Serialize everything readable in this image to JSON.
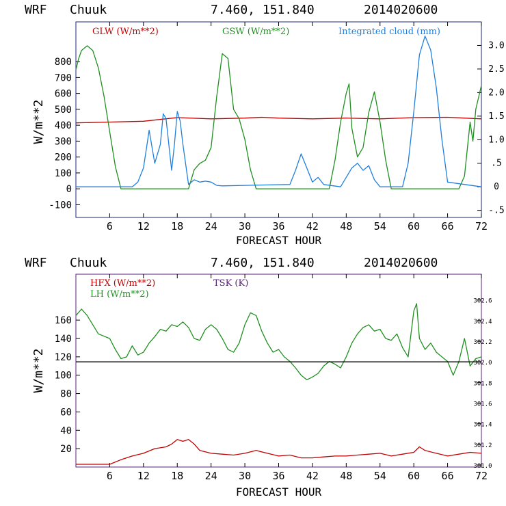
{
  "chart_data": [
    {
      "type": "line",
      "header": {
        "model": "WRF",
        "station": "Chuuk",
        "coords": "7.460, 151.840",
        "date": "2014020600"
      },
      "xlabel": "FORECAST HOUR",
      "ylabel": "W/m**2",
      "xlim": [
        0,
        72
      ],
      "x_ticks": [
        "6",
        "12",
        "18",
        "24",
        "30",
        "36",
        "42",
        "48",
        "54",
        "60",
        "66",
        "72"
      ],
      "ylim_left": [
        -180,
        1050
      ],
      "y_ticks_left": [
        "800",
        "700",
        "600",
        "500",
        "400",
        "300",
        "200",
        "100",
        "0",
        "-100"
      ],
      "ylim_right": [
        -0.65,
        3.5
      ],
      "y_ticks_right": [
        "3.0",
        "2.5",
        "2.0",
        "1.5",
        "1.0",
        ".5",
        "0",
        "-.5"
      ],
      "legend": [
        "GLW (W/m**2)",
        "GSW (W/m**2)",
        "Integrated cloud (mm)"
      ],
      "colors": {
        "GLW": "#c00000",
        "GSW": "#1f8f1f",
        "cloud": "#1e7fe0",
        "axis": "#000000"
      },
      "series": [
        {
          "name": "GLW (W/m**2)",
          "axis": "left",
          "x": [
            0,
            6,
            12,
            18,
            24,
            30,
            33,
            36,
            42,
            48,
            54,
            60,
            66,
            69,
            72
          ],
          "values": [
            415,
            420,
            425,
            448,
            440,
            445,
            450,
            445,
            440,
            445,
            440,
            448,
            450,
            445,
            440
          ]
        },
        {
          "name": "GSW (W/m**2)",
          "axis": "left",
          "x": [
            0,
            0.5,
            1,
            2,
            3,
            4,
            5,
            6,
            7,
            8,
            20,
            21,
            22,
            23,
            24,
            25,
            26,
            27,
            28,
            29,
            30,
            31,
            32,
            45,
            46,
            47,
            48,
            48.5,
            49,
            50,
            51,
            52,
            53,
            54,
            55,
            56,
            68,
            69,
            70,
            70.5,
            71,
            72
          ],
          "values": [
            750,
            820,
            870,
            900,
            870,
            760,
            580,
            360,
            140,
            0,
            0,
            120,
            160,
            180,
            260,
            580,
            850,
            820,
            500,
            440,
            310,
            120,
            0,
            0,
            180,
            420,
            600,
            660,
            380,
            200,
            260,
            480,
            610,
            420,
            180,
            0,
            0,
            80,
            420,
            300,
            500,
            650
          ]
        },
        {
          "name": "Integrated cloud (mm)",
          "axis": "right",
          "x": [
            0,
            10,
            11,
            12,
            12.5,
            13,
            14,
            15,
            15.5,
            16,
            17,
            17.5,
            18,
            18.5,
            19,
            20,
            21,
            22,
            23,
            24,
            25,
            26,
            30,
            38,
            39,
            40,
            41,
            42,
            43,
            44,
            47,
            48,
            49,
            50,
            51,
            52,
            53,
            54,
            58,
            59,
            60,
            61,
            62,
            63,
            64,
            65,
            66,
            72
          ],
          "values": [
            0,
            0,
            0.1,
            0.4,
            0.8,
            1.2,
            0.5,
            0.9,
            1.55,
            1.45,
            0.35,
            0.9,
            1.6,
            1.4,
            0.9,
            0.05,
            0.15,
            0.1,
            0.12,
            0.1,
            0.03,
            0.02,
            0.03,
            0.05,
            0.35,
            0.7,
            0.4,
            0.1,
            0.2,
            0.05,
            0,
            0.2,
            0.4,
            0.5,
            0.35,
            0.45,
            0.15,
            0,
            0,
            0.5,
            1.6,
            2.8,
            3.2,
            2.9,
            2.1,
            1.0,
            0.1,
            0
          ]
        }
      ]
    },
    {
      "type": "line",
      "header": {
        "model": "WRF",
        "station": "Chuuk",
        "coords": "7.460, 151.840",
        "date": "2014020600"
      },
      "xlabel": "FORECAST HOUR",
      "ylabel": "W/m**2",
      "xlim": [
        0,
        72
      ],
      "x_ticks": [
        "6",
        "12",
        "18",
        "24",
        "30",
        "36",
        "42",
        "48",
        "54",
        "60",
        "66",
        "72"
      ],
      "ylim_left": [
        0,
        210
      ],
      "y_ticks_left": [
        "160",
        "140",
        "120",
        "100",
        "80",
        "60",
        "40",
        "20"
      ],
      "ylim_right": [
        300.98,
        302.85
      ],
      "y_ticks_right": [
        "302.6",
        "302.4",
        "302.2",
        "302.0",
        "301.8",
        "301.6",
        "301.4",
        "301.2",
        "301.0"
      ],
      "legend": [
        "HFX (W/m**2)",
        "LH  (W/m**2)",
        "TSK (K)"
      ],
      "colors": {
        "HFX": "#c00000",
        "LH": "#1f8f1f",
        "TSK": "#5a1f7a",
        "axis": "#000000"
      },
      "series": [
        {
          "name": "LH  (W/m**2)",
          "axis": "left",
          "x": [
            0,
            1,
            2,
            3,
            4,
            6,
            7,
            8,
            9,
            10,
            11,
            12,
            13,
            14,
            15,
            16,
            17,
            18,
            19,
            20,
            21,
            22,
            23,
            24,
            25,
            26,
            27,
            28,
            29,
            30,
            31,
            32,
            33,
            34,
            35,
            36,
            37,
            38,
            39,
            40,
            41,
            42,
            43,
            44,
            45,
            46,
            47,
            48,
            49,
            50,
            51,
            52,
            53,
            54,
            55,
            56,
            57,
            58,
            59,
            60,
            60.5,
            61,
            62,
            63,
            64,
            65,
            66,
            67,
            68,
            69,
            70,
            71,
            72
          ],
          "values": [
            165,
            172,
            165,
            155,
            145,
            140,
            128,
            118,
            120,
            132,
            122,
            125,
            135,
            142,
            150,
            148,
            155,
            153,
            158,
            152,
            140,
            138,
            150,
            155,
            150,
            140,
            128,
            125,
            135,
            155,
            168,
            165,
            148,
            135,
            125,
            128,
            120,
            115,
            108,
            100,
            95,
            98,
            102,
            110,
            115,
            112,
            108,
            120,
            135,
            145,
            152,
            155,
            148,
            150,
            140,
            138,
            145,
            130,
            120,
            170,
            178,
            140,
            128,
            135,
            125,
            120,
            115,
            100,
            115,
            140,
            110,
            118,
            120
          ]
        },
        {
          "name": "HFX (W/m**2)",
          "axis": "left",
          "x": [
            0,
            6,
            8,
            10,
            12,
            14,
            16,
            17,
            18,
            19,
            20,
            21,
            22,
            24,
            26,
            28,
            30,
            32,
            34,
            36,
            38,
            40,
            42,
            44,
            46,
            48,
            50,
            52,
            54,
            56,
            58,
            60,
            61,
            62,
            64,
            66,
            68,
            70,
            72
          ],
          "values": [
            3,
            3,
            8,
            12,
            15,
            20,
            22,
            25,
            30,
            28,
            30,
            25,
            18,
            15,
            14,
            13,
            15,
            18,
            15,
            12,
            13,
            10,
            10,
            11,
            12,
            12,
            13,
            14,
            15,
            12,
            14,
            16,
            22,
            18,
            15,
            12,
            14,
            16,
            15
          ]
        },
        {
          "name": "TSK (K)",
          "axis": "right",
          "x": [
            0,
            72
          ],
          "values": [
            302.0,
            302.0
          ]
        }
      ]
    }
  ]
}
